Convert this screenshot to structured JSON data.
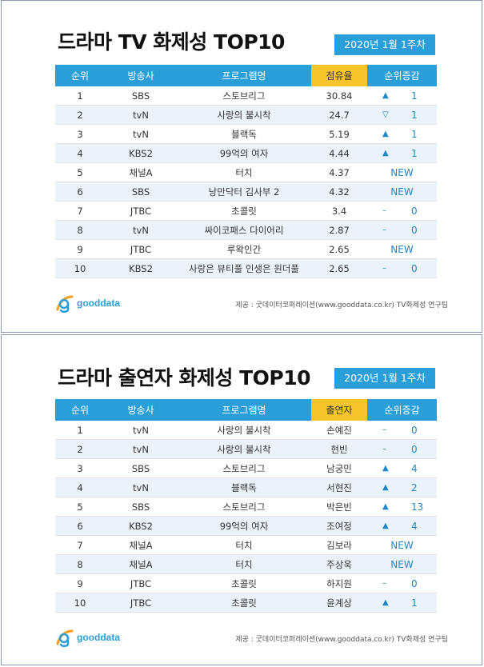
{
  "panel1": {
    "title": "드라마 TV 화제성 TOP10",
    "date": "2020년 1월 1주차",
    "headers": {
      "rank": "순위",
      "channel": "방송사",
      "program": "프로그램명",
      "value": "점유율",
      "change": "순위증감"
    },
    "rows": [
      {
        "rank": "1",
        "channel": "SBS",
        "program": "스토브리그",
        "value": "30.84",
        "icon": "▲",
        "icon_name": "up-triangle-icon",
        "num": "1"
      },
      {
        "rank": "2",
        "channel": "tvN",
        "program": "사랑의 불시착",
        "value": "24.7",
        "icon": "▽",
        "icon_name": "down-triangle-icon",
        "num": "1"
      },
      {
        "rank": "3",
        "channel": "tvN",
        "program": "블랙독",
        "value": "5.19",
        "icon": "▲",
        "icon_name": "up-triangle-icon",
        "num": "1"
      },
      {
        "rank": "4",
        "channel": "KBS2",
        "program": "99억의 여자",
        "value": "4.44",
        "icon": "▲",
        "icon_name": "up-triangle-icon",
        "num": "1"
      },
      {
        "rank": "5",
        "channel": "채널A",
        "program": "터치",
        "value": "4.37",
        "new": "NEW"
      },
      {
        "rank": "6",
        "channel": "SBS",
        "program": "낭만닥터 김사부 2",
        "value": "4.32",
        "new": "NEW"
      },
      {
        "rank": "7",
        "channel": "JTBC",
        "program": "초콜릿",
        "value": "3.4",
        "icon": "–",
        "icon_name": "dash-icon",
        "num": "0"
      },
      {
        "rank": "8",
        "channel": "tvN",
        "program": "싸이코패스 다이어리",
        "value": "2.87",
        "icon": "–",
        "icon_name": "dash-icon",
        "num": "0"
      },
      {
        "rank": "9",
        "channel": "JTBC",
        "program": "루왁인간",
        "value": "2.65",
        "new": "NEW"
      },
      {
        "rank": "10",
        "channel": "KBS2",
        "program": "사랑은 뷰티풀 인생은 원더풀",
        "value": "2.65",
        "icon": "–",
        "icon_name": "dash-icon",
        "num": "0"
      }
    ],
    "logo": "gooddata",
    "source": "제공 : 굿데이터코퍼레이션(www.gooddata.co.kr) TV화제성 연구팀"
  },
  "panel2": {
    "title": "드라마 출연자 화제성 TOP10",
    "date": "2020년 1월 1주차",
    "headers": {
      "rank": "순위",
      "channel": "방송사",
      "program": "프로그램명",
      "value": "출연자",
      "change": "순위증감"
    },
    "rows": [
      {
        "rank": "1",
        "channel": "tvN",
        "program": "사랑의 불시착",
        "value": "손예진",
        "icon": "–",
        "icon_name": "dash-icon",
        "num": "0"
      },
      {
        "rank": "2",
        "channel": "tvN",
        "program": "사랑의 불시착",
        "value": "현빈",
        "icon": "–",
        "icon_name": "dash-icon",
        "num": "0"
      },
      {
        "rank": "3",
        "channel": "SBS",
        "program": "스토브리그",
        "value": "남궁민",
        "icon": "▲",
        "icon_name": "up-triangle-icon",
        "num": "4"
      },
      {
        "rank": "4",
        "channel": "tvN",
        "program": "블랙독",
        "value": "서현진",
        "icon": "▲",
        "icon_name": "up-triangle-icon",
        "num": "2"
      },
      {
        "rank": "5",
        "channel": "SBS",
        "program": "스토브리그",
        "value": "박은빈",
        "icon": "▲",
        "icon_name": "up-triangle-icon",
        "num": "13"
      },
      {
        "rank": "6",
        "channel": "KBS2",
        "program": "99억의 여자",
        "value": "조여정",
        "icon": "▲",
        "icon_name": "up-triangle-icon",
        "num": "4"
      },
      {
        "rank": "7",
        "channel": "채널A",
        "program": "터치",
        "value": "김보라",
        "new": "NEW"
      },
      {
        "rank": "8",
        "channel": "채널A",
        "program": "터치",
        "value": "주상욱",
        "new": "NEW"
      },
      {
        "rank": "9",
        "channel": "JTBC",
        "program": "초콜릿",
        "value": "하지원",
        "icon": "–",
        "icon_name": "dash-icon",
        "num": "0"
      },
      {
        "rank": "10",
        "channel": "JTBC",
        "program": "초콜릿",
        "value": "윤계상",
        "icon": "▲",
        "icon_name": "up-triangle-icon",
        "num": "1"
      }
    ],
    "logo": "gooddata",
    "source": "제공 : 굿데이터코퍼레이션(www.gooddata.co.kr) TV화제성 연구팀"
  },
  "colors": {
    "header_blue": "#2a9ed9",
    "header_yellow": "#f7c52a",
    "accent_blue": "#1f86c8",
    "alt_row": "#eaf3fa"
  }
}
